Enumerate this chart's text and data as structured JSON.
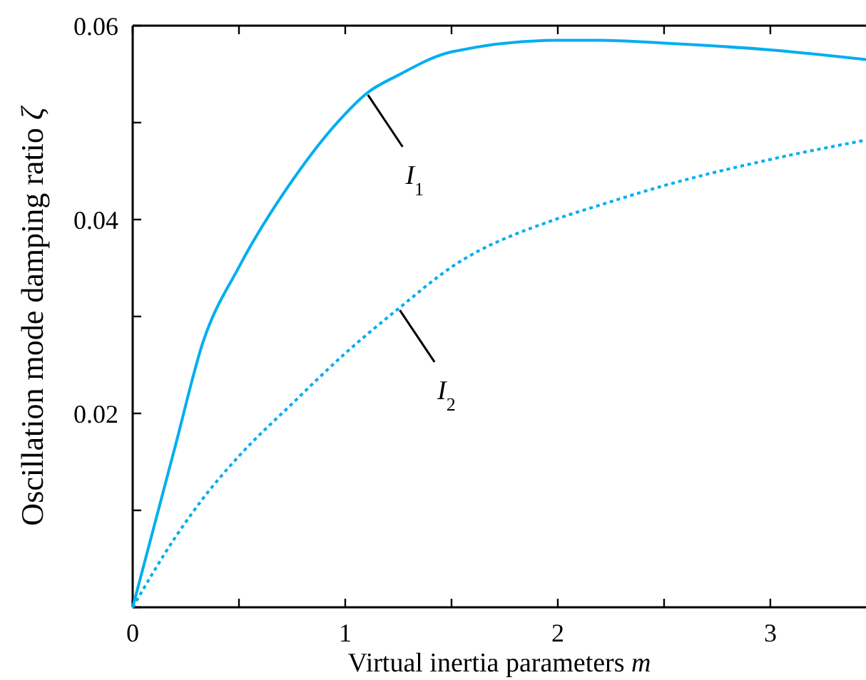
{
  "chart_data": {
    "type": "line",
    "xlabel": "Virtual inertia parameters m",
    "ylabel": "Oscillation mode damping ratio ζ",
    "xlim": [
      0,
      3.45
    ],
    "ylim": [
      0,
      0.06
    ],
    "xticks": [
      0,
      {
        "value": 0.5,
        "label": null
      },
      1,
      {
        "value": 1.5,
        "label": null
      },
      2,
      {
        "value": 2.5,
        "label": null
      },
      3
    ],
    "yticks": [
      {
        "value": 0,
        "label": null
      },
      {
        "value": 0.01,
        "label": null
      },
      0.02,
      {
        "value": 0.03,
        "label": null
      },
      0.04,
      {
        "value": 0.05,
        "label": null
      },
      0.06
    ],
    "grid": false,
    "marker": "none",
    "x": [
      0,
      0.2,
      0.33,
      0.5,
      0.75,
      1.0,
      1.1,
      1.25,
      1.5,
      2.0,
      2.2,
      2.5,
      3.0,
      3.45
    ],
    "series": [
      {
        "name": "I$_{1}$",
        "color": "#00aeef",
        "line_style": "solid",
        "values": [
          0,
          0.0166,
          0.0273,
          0.0351,
          0.044,
          0.0509,
          0.053,
          0.0549,
          0.0573,
          0.0585,
          0.0585,
          0.0582,
          0.0575,
          0.0565
        ]
      },
      {
        "name": "I$_{2}$",
        "color": "#00aeef",
        "line_style": "dotted",
        "values": [
          0,
          0.0072,
          0.0112,
          0.0156,
          0.021,
          0.0262,
          0.0281,
          0.0308,
          0.0351,
          0.0401,
          0.0415,
          0.0435,
          0.0462,
          0.0482
        ]
      }
    ]
  }
}
